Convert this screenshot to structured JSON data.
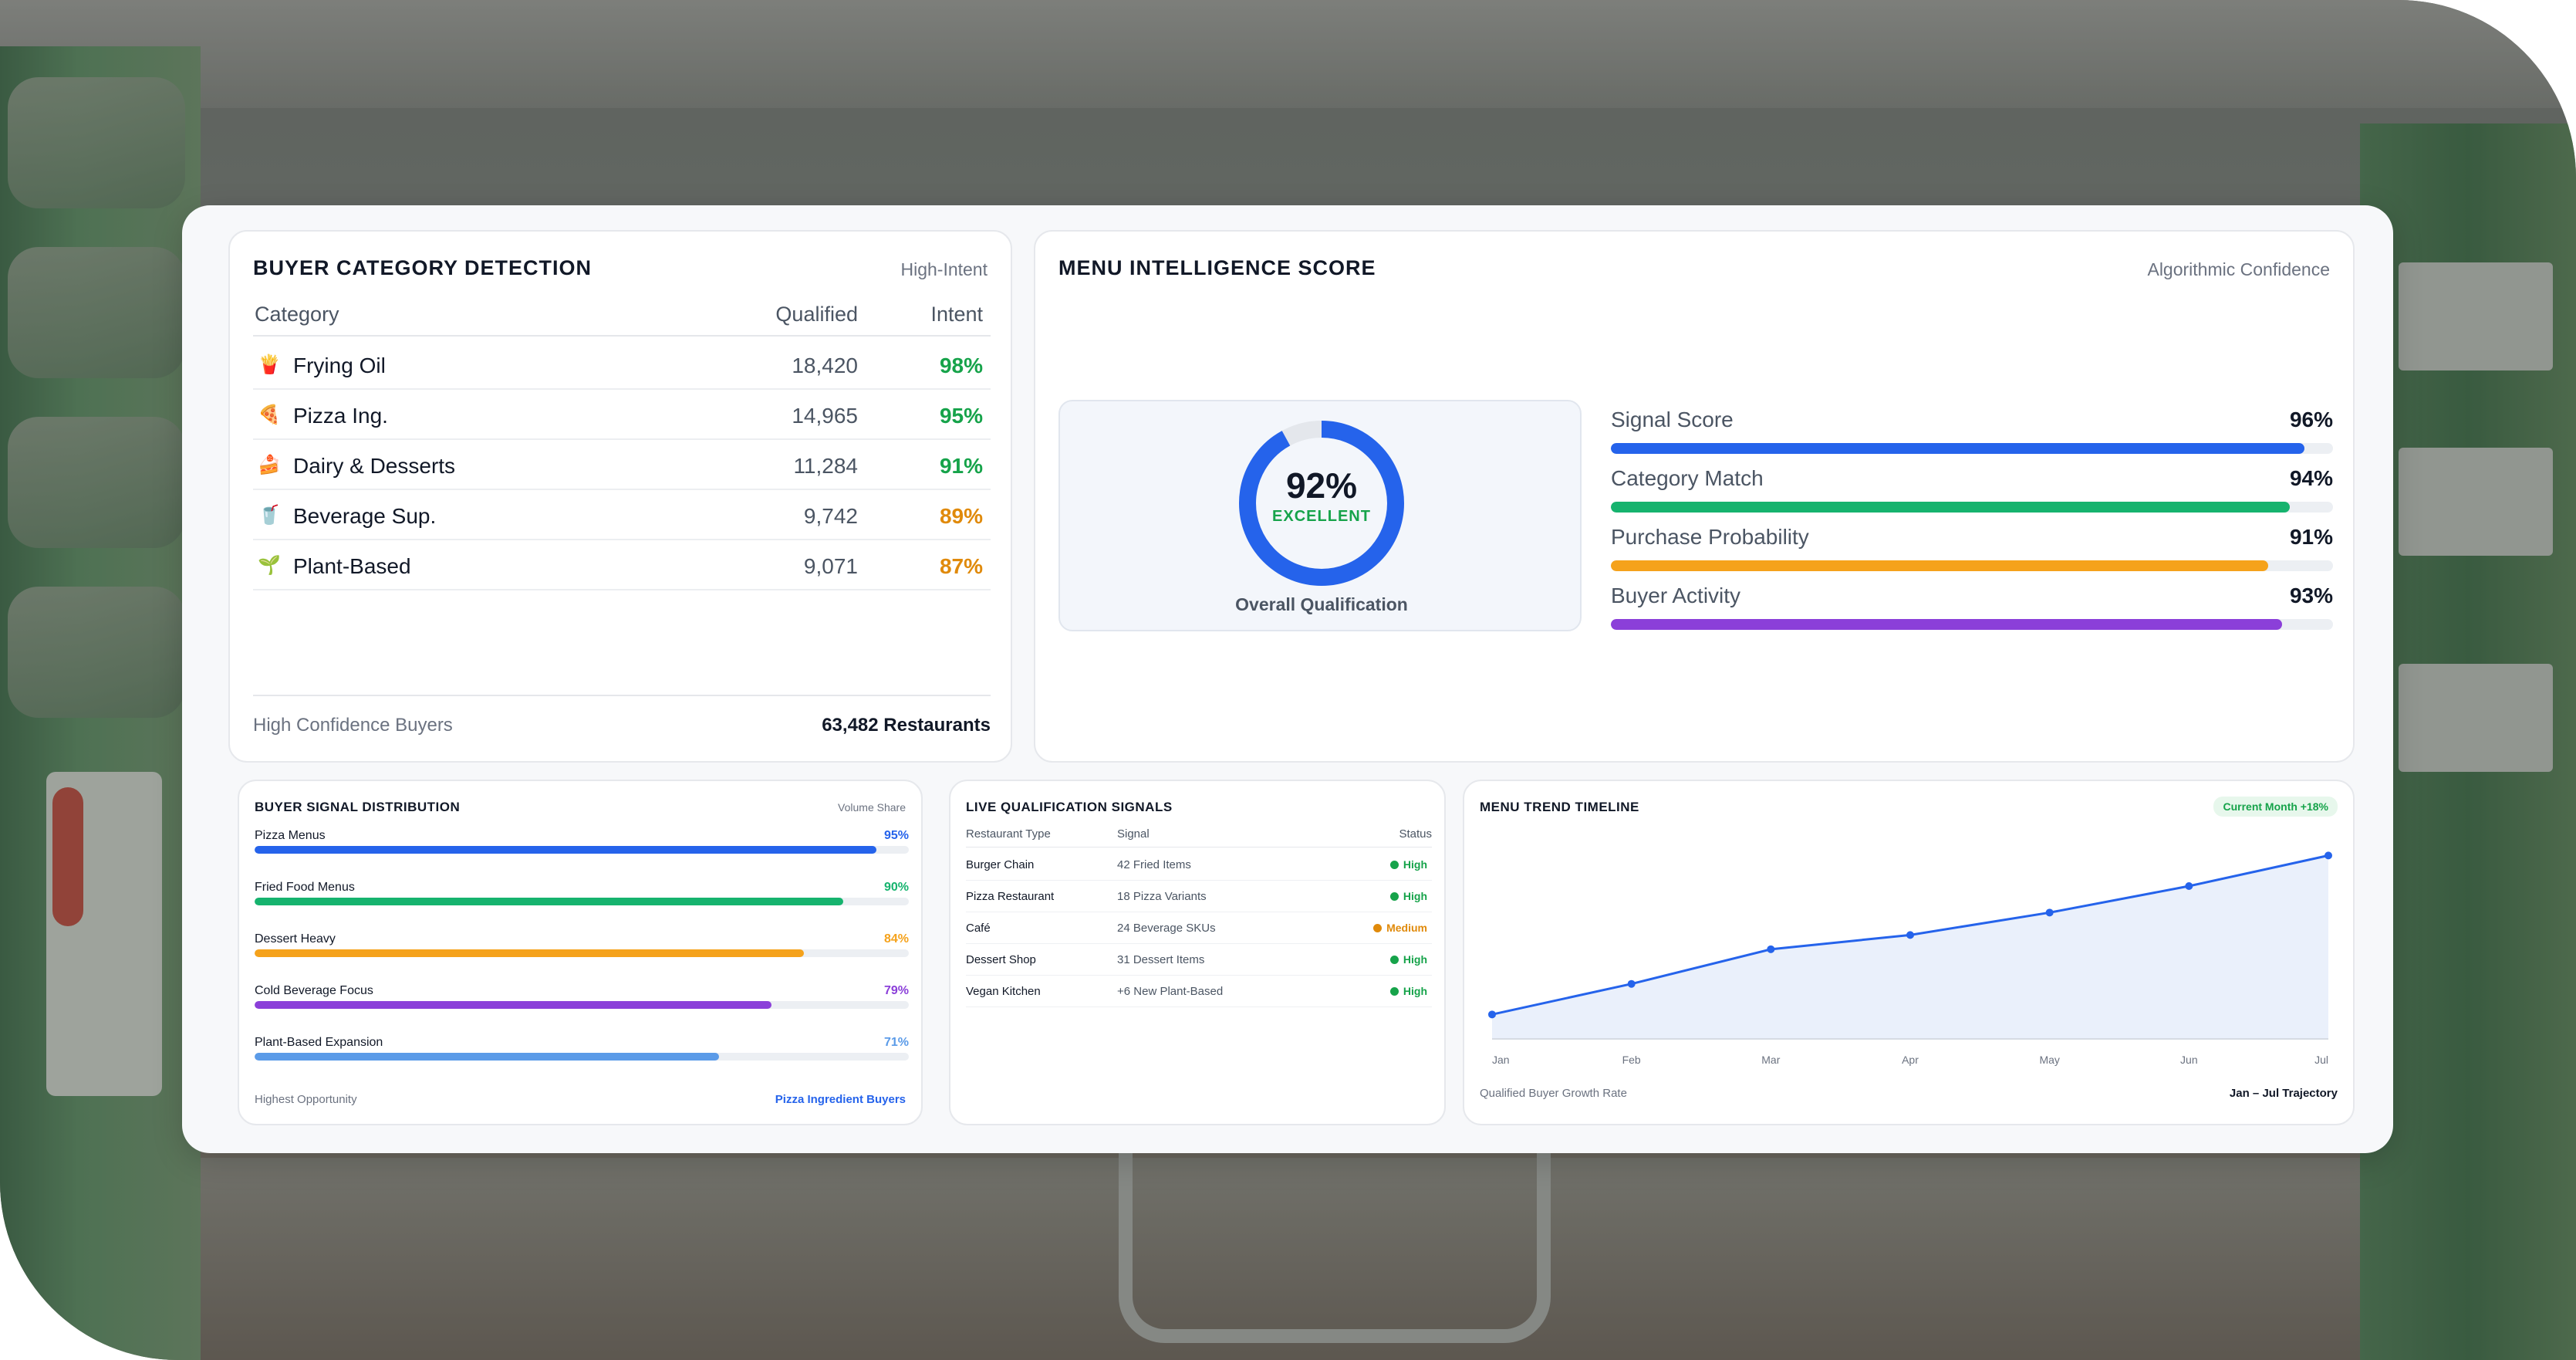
{
  "colors": {
    "blue": "#2563eb",
    "green": "#16b36e",
    "orange": "#f5a21b",
    "purple": "#8b3fd9",
    "lightblue": "#5b9be8",
    "intent_green": "#16a34a",
    "intent_orange": "#e08a0b"
  },
  "buyer_category": {
    "title": "BUYER CATEGORY DETECTION",
    "tag": "High-Intent",
    "columns": {
      "category": "Category",
      "qualified": "Qualified",
      "intent": "Intent"
    },
    "rows": [
      {
        "icon": "fries-icon",
        "glyph": "🍟",
        "category": "Frying Oil",
        "qualified": "18,420",
        "intent": "98%",
        "intent_color": "#16a34a"
      },
      {
        "icon": "pizza-icon",
        "glyph": "🍕",
        "category": "Pizza Ing.",
        "qualified": "14,965",
        "intent": "95%",
        "intent_color": "#16a34a"
      },
      {
        "icon": "cake-icon",
        "glyph": "🍰",
        "category": "Dairy & Desserts",
        "qualified": "11,284",
        "intent": "91%",
        "intent_color": "#16a34a"
      },
      {
        "icon": "drink-icon",
        "glyph": "🥤",
        "category": "Beverage Sup.",
        "qualified": "9,742",
        "intent": "89%",
        "intent_color": "#e08a0b"
      },
      {
        "icon": "sprout-icon",
        "glyph": "🌱",
        "category": "Plant-Based",
        "qualified": "9,071",
        "intent": "87%",
        "intent_color": "#e08a0b"
      }
    ],
    "footer_label": "High Confidence Buyers",
    "footer_value": "63,482 Restaurants"
  },
  "menu_score": {
    "title": "MENU INTELLIGENCE SCORE",
    "tag": "Algorithmic Confidence",
    "gauge_value": "92%",
    "gauge_fraction": 0.92,
    "gauge_label": "EXCELLENT",
    "gauge_caption": "Overall Qualification",
    "metrics": [
      {
        "name": "Signal Score",
        "value": "96%",
        "fraction": 0.96,
        "color": "#2563eb"
      },
      {
        "name": "Category Match",
        "value": "94%",
        "fraction": 0.94,
        "color": "#16b36e"
      },
      {
        "name": "Purchase Probability",
        "value": "91%",
        "fraction": 0.91,
        "color": "#f5a21b"
      },
      {
        "name": "Buyer Activity",
        "value": "93%",
        "fraction": 0.93,
        "color": "#8b3fd9"
      }
    ]
  },
  "signal_distribution": {
    "title": "BUYER SIGNAL DISTRIBUTION",
    "tag": "Volume Share",
    "items": [
      {
        "name": "Pizza Menus",
        "value": "95%",
        "fraction": 0.95,
        "color": "#2563eb"
      },
      {
        "name": "Fried Food Menus",
        "value": "90%",
        "fraction": 0.9,
        "color": "#16b36e"
      },
      {
        "name": "Dessert Heavy",
        "value": "84%",
        "fraction": 0.84,
        "color": "#f5a21b"
      },
      {
        "name": "Cold Beverage Focus",
        "value": "79%",
        "fraction": 0.79,
        "color": "#8b3fd9"
      },
      {
        "name": "Plant-Based Expansion",
        "value": "71%",
        "fraction": 0.71,
        "color": "#5b9be8"
      }
    ],
    "footer_label": "Highest Opportunity",
    "footer_value": "Pizza Ingredient Buyers"
  },
  "live_signals": {
    "title": "LIVE QUALIFICATION SIGNALS",
    "columns": {
      "type": "Restaurant Type",
      "signal": "Signal",
      "status": "Status"
    },
    "rows": [
      {
        "type": "Burger Chain",
        "signal": "42 Fried Items",
        "status": "High",
        "status_color": "#16a34a"
      },
      {
        "type": "Pizza Restaurant",
        "signal": "18 Pizza Variants",
        "status": "High",
        "status_color": "#16a34a"
      },
      {
        "type": "Café",
        "signal": "24 Beverage SKUs",
        "status": "Medium",
        "status_color": "#e08a0b"
      },
      {
        "type": "Dessert Shop",
        "signal": "31 Dessert Items",
        "status": "High",
        "status_color": "#16a34a"
      },
      {
        "type": "Vegan Kitchen",
        "signal": "+6 New Plant-Based",
        "status": "High",
        "status_color": "#16a34a"
      }
    ]
  },
  "trend": {
    "title": "MENU TREND TIMELINE",
    "badge": "Current Month +18%",
    "footer_label": "Qualified Buyer Growth Rate",
    "footer_value": "Jan – Jul Trajectory"
  },
  "chart_data": {
    "type": "area",
    "categories": [
      "Jan",
      "Feb",
      "Mar",
      "Apr",
      "May",
      "Jun",
      "Jul"
    ],
    "values": [
      12,
      27,
      44,
      51,
      62,
      75,
      90
    ],
    "ylim": [
      0,
      100
    ],
    "grid": false,
    "title": "",
    "xlabel": "",
    "ylabel": ""
  }
}
